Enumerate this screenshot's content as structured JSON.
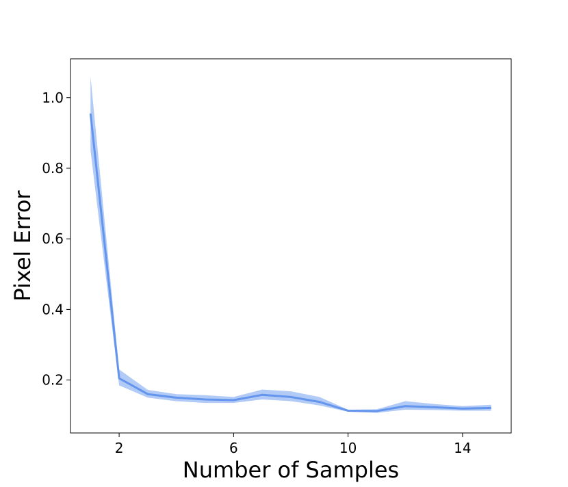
{
  "chart_data": {
    "type": "line",
    "title": "",
    "xlabel": "Number of Samples",
    "ylabel": "Pixel Error",
    "xlim": [
      0.3,
      15.7
    ],
    "ylim": [
      0.05,
      1.11
    ],
    "xticks": [
      2,
      6,
      10,
      14
    ],
    "yticks": [
      0.2,
      0.4,
      0.6,
      0.8,
      1.0
    ],
    "xtick_labels": [
      "2",
      "6",
      "10",
      "14"
    ],
    "ytick_labels": [
      "0.2",
      "0.4",
      "0.6",
      "0.8",
      "1.0"
    ],
    "grid": false,
    "legend": "none",
    "series": [
      {
        "x": [
          1,
          2,
          3,
          4,
          5,
          6,
          7,
          8,
          9,
          10,
          11,
          12,
          13,
          14,
          15
        ],
        "y": [
          0.955,
          0.205,
          0.16,
          0.15,
          0.145,
          0.143,
          0.158,
          0.152,
          0.138,
          0.113,
          0.112,
          0.126,
          0.123,
          0.119,
          0.121
        ],
        "lower": [
          0.85,
          0.185,
          0.15,
          0.14,
          0.135,
          0.135,
          0.145,
          0.14,
          0.128,
          0.11,
          0.107,
          0.116,
          0.115,
          0.113,
          0.113
        ],
        "upper": [
          1.06,
          0.23,
          0.172,
          0.16,
          0.157,
          0.152,
          0.173,
          0.168,
          0.152,
          0.116,
          0.117,
          0.14,
          0.132,
          0.126,
          0.13
        ],
        "color": "#6495ED"
      }
    ]
  }
}
